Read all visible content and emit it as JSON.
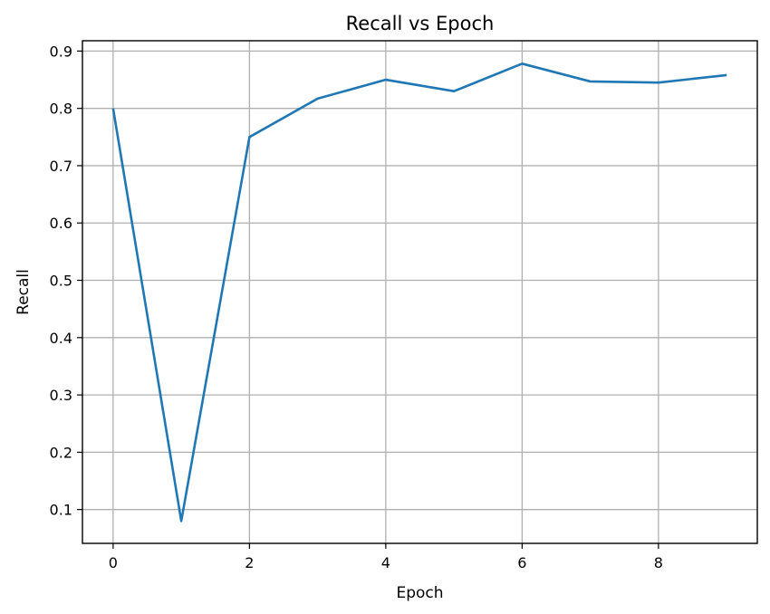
{
  "chart_data": {
    "type": "line",
    "title": "Recall vs Epoch",
    "xlabel": "Epoch",
    "ylabel": "Recall",
    "xlim": [
      -0.45,
      9.45
    ],
    "ylim": [
      0.041,
      0.918
    ],
    "xticks": [
      0,
      2,
      4,
      6,
      8
    ],
    "yticks": [
      0.1,
      0.2,
      0.3,
      0.4,
      0.5,
      0.6,
      0.7,
      0.8,
      0.9
    ],
    "grid": true,
    "series": [
      {
        "color": "#1f77b4",
        "x": [
          0,
          1,
          2,
          3,
          4,
          5,
          6,
          7,
          8,
          9
        ],
        "y": [
          0.8,
          0.08,
          0.75,
          0.817,
          0.85,
          0.83,
          0.878,
          0.847,
          0.845,
          0.858
        ]
      }
    ]
  }
}
